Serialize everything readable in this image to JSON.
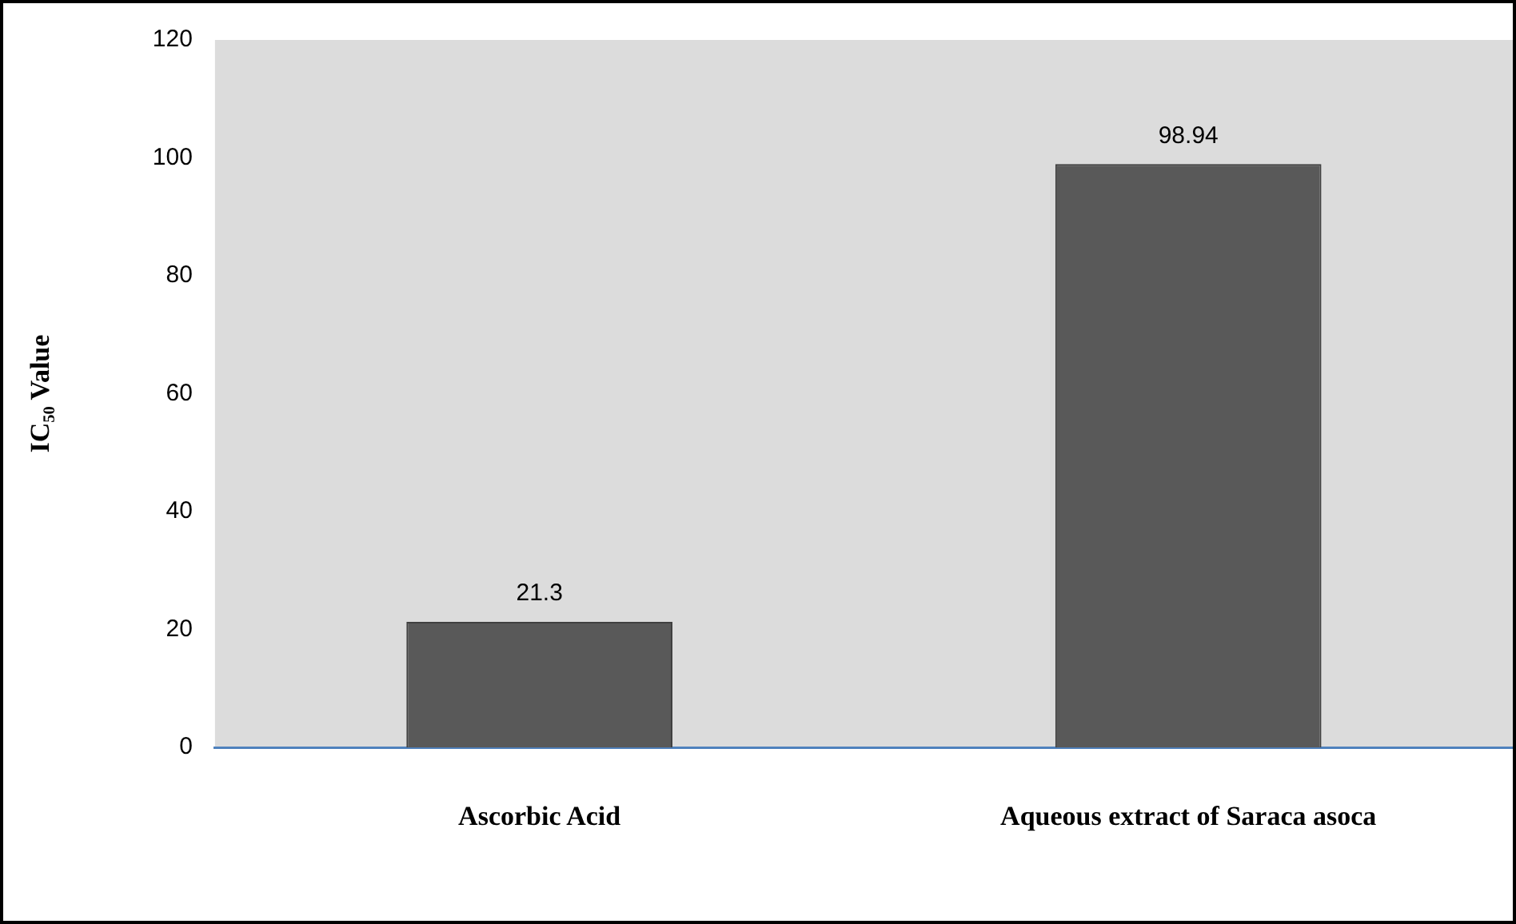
{
  "chart_data": {
    "type": "bar",
    "ylabel": "IC₅₀ Value",
    "categories": [
      "Ascorbic Acid",
      "Aqueous extract of Saraca asoca"
    ],
    "values": [
      21.3,
      98.94
    ],
    "color": "#595959",
    "ylim": [
      0,
      120
    ],
    "yticks": [
      0,
      20,
      40,
      60,
      80,
      100,
      120
    ],
    "data_labels": true,
    "grid": false,
    "legend": false
  }
}
